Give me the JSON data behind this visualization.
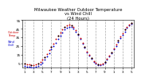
{
  "title": "Milwaukee Weather Outdoor Temperature\nvs Wind Chill\n(24 Hours)",
  "title_fontsize": 3.8,
  "bg_color": "#ffffff",
  "plot_bg_color": "#ffffff",
  "grid_color": "#aaaaaa",
  "temp": [
    5,
    4,
    4,
    3,
    3,
    4,
    5,
    7,
    9,
    12,
    16,
    20,
    24,
    28,
    33,
    37,
    41,
    44,
    47,
    49,
    50,
    49,
    47,
    43,
    39,
    34,
    29,
    24,
    19,
    15,
    11,
    8,
    6,
    4,
    4,
    5,
    7,
    10,
    14,
    18,
    22,
    27,
    31,
    36,
    40,
    44,
    47,
    50,
    52
  ],
  "wind_chill": [
    2,
    1,
    1,
    0,
    0,
    1,
    2,
    4,
    6,
    9,
    13,
    17,
    21,
    25,
    29,
    33,
    37,
    41,
    44,
    46,
    47,
    47,
    45,
    42,
    38,
    33,
    28,
    23,
    18,
    14,
    10,
    7,
    5,
    3,
    3,
    4,
    6,
    9,
    13,
    17,
    21,
    25,
    30,
    34,
    38,
    42,
    46,
    49,
    51
  ],
  "black_temp": [
    5,
    4,
    4,
    3,
    3,
    4,
    5,
    7,
    9,
    12,
    16,
    20,
    24,
    28,
    33,
    37,
    41,
    44,
    47,
    49,
    50,
    49,
    47,
    43,
    39,
    34,
    29,
    24,
    19,
    15,
    11,
    8,
    6,
    4,
    4,
    5,
    7,
    10,
    14,
    18,
    22,
    27,
    31,
    36,
    40,
    44,
    47,
    50,
    52
  ],
  "temp_color": "#cc0000",
  "wind_chill_color": "#0000cc",
  "black_color": "#000000",
  "dot_size": 1.8,
  "black_dot_size": 1.8,
  "ylim_min": 0,
  "ylim_max": 55,
  "tick_fontsize": 3.0,
  "grid_linewidth": 0.5,
  "grid_linestyle": "--",
  "yticks": [
    5,
    15,
    25,
    35,
    45,
    55
  ],
  "ytick_labels": [
    "5",
    "15",
    "25",
    "35",
    "45",
    "55"
  ],
  "xtick_step": 4,
  "x_tick_labels": [
    "1",
    "3",
    "5",
    "7",
    "9",
    "1",
    "3",
    "5",
    "7",
    "9",
    "1",
    "3",
    "5"
  ]
}
